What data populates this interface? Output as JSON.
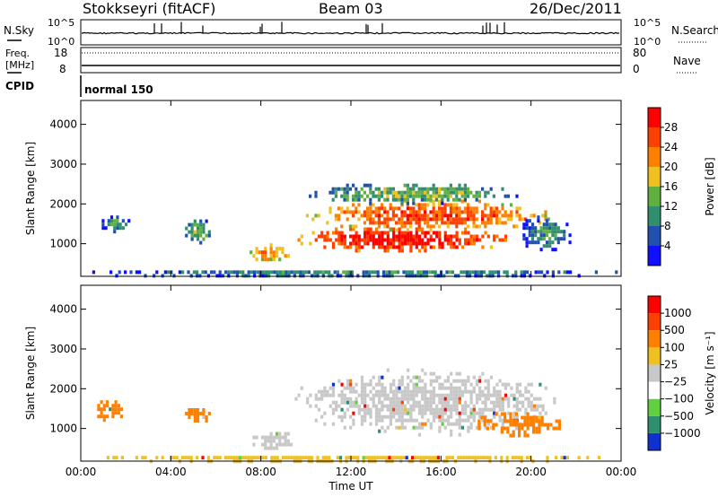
{
  "header": {
    "station": "Stokkseyri (fitACF)",
    "beam": "Beam 03",
    "date": "26/Dec/2011"
  },
  "top_panels": {
    "nsky_label": "N.Sky",
    "nsky_ticks": [
      "10^5",
      "10^0"
    ],
    "nsearch_label": "N.Search",
    "nsearch_ticks": [
      "10^5",
      "10^0"
    ],
    "freq_label_line1": "Freq.",
    "freq_label_line2": "[MHz]",
    "freq_ticks": [
      "18",
      "8"
    ],
    "nave_label": "Nave",
    "nave_ticks": [
      "80",
      "0"
    ],
    "cpid_label": "CPID",
    "cpid_value": "normal 150"
  },
  "chart_data": [
    {
      "type": "heatmap",
      "name": "power-panel",
      "ylabel": "Slant Range [km]",
      "xlim": [
        0,
        24
      ],
      "ylim": [
        180,
        4600
      ],
      "yticks": [
        "1000",
        "2000",
        "3000",
        "4000"
      ],
      "colorbar": {
        "label": "Power [dB]",
        "ticks": [
          "4",
          "8",
          "12",
          "16",
          "20",
          "24",
          "28"
        ],
        "colors": [
          "#1010ff",
          "#2050b0",
          "#2f8f6f",
          "#60b040",
          "#f0c020",
          "#ff8000",
          "#ff4000",
          "#ff0000"
        ]
      },
      "regions": [
        {
          "t0": 0.8,
          "t1": 2.2,
          "r0": 1300,
          "r1": 1800,
          "level": 1
        },
        {
          "t0": 4.5,
          "t1": 5.8,
          "r0": 1000,
          "r1": 1700,
          "level": 2
        },
        {
          "t0": 7.5,
          "t1": 9.3,
          "r0": 500,
          "r1": 1100,
          "level": 4
        },
        {
          "t0": 9.5,
          "t1": 19.0,
          "r0": 800,
          "r1": 1500,
          "level": 6
        },
        {
          "t0": 10.0,
          "t1": 20.8,
          "r0": 1300,
          "r1": 2200,
          "level": 5
        },
        {
          "t0": 10.0,
          "t1": 19.5,
          "r0": 2000,
          "r1": 2600,
          "level": 2
        },
        {
          "t0": 19.5,
          "t1": 21.8,
          "r0": 800,
          "r1": 1800,
          "level": 1
        },
        {
          "t0": 0.0,
          "t1": 24.0,
          "r0": 180,
          "r1": 420,
          "level": 1
        }
      ]
    },
    {
      "type": "heatmap",
      "name": "velocity-panel",
      "ylabel": "Slant Range [km]",
      "xlabel": "Time UT",
      "xlim": [
        0,
        24
      ],
      "ylim": [
        180,
        4600
      ],
      "xticks": [
        "00:00",
        "04:00",
        "08:00",
        "12:00",
        "16:00",
        "20:00",
        "00:00"
      ],
      "yticks": [
        "1000",
        "2000",
        "3000",
        "4000"
      ],
      "colorbar": {
        "label": "Velocity [m s⁻¹]",
        "ticks": [
          "1000",
          "500",
          "100",
          "25",
          "−25",
          "−100",
          "−500",
          "−1000"
        ],
        "colors": [
          "#1030d0",
          "#2f8f6f",
          "#60d040",
          "#ffffff",
          "#c8c8c8",
          "#f0c020",
          "#ff8000",
          "#ff4000",
          "#ff0000"
        ]
      },
      "regions": [
        {
          "t0": 0.6,
          "t1": 2.0,
          "r0": 1200,
          "r1": 1800,
          "level": 6
        },
        {
          "t0": 4.5,
          "t1": 5.8,
          "r0": 1100,
          "r1": 1600,
          "level": 6
        },
        {
          "t0": 7.5,
          "t1": 9.5,
          "r0": 500,
          "r1": 1000,
          "level": 4
        },
        {
          "t0": 9.5,
          "t1": 21.0,
          "r0": 800,
          "r1": 2600,
          "level": 4
        },
        {
          "t0": 17.5,
          "t1": 21.5,
          "r0": 800,
          "r1": 1500,
          "level": 6
        },
        {
          "t0": 0.0,
          "t1": 24.0,
          "r0": 180,
          "r1": 400,
          "level": 5
        }
      ]
    }
  ]
}
